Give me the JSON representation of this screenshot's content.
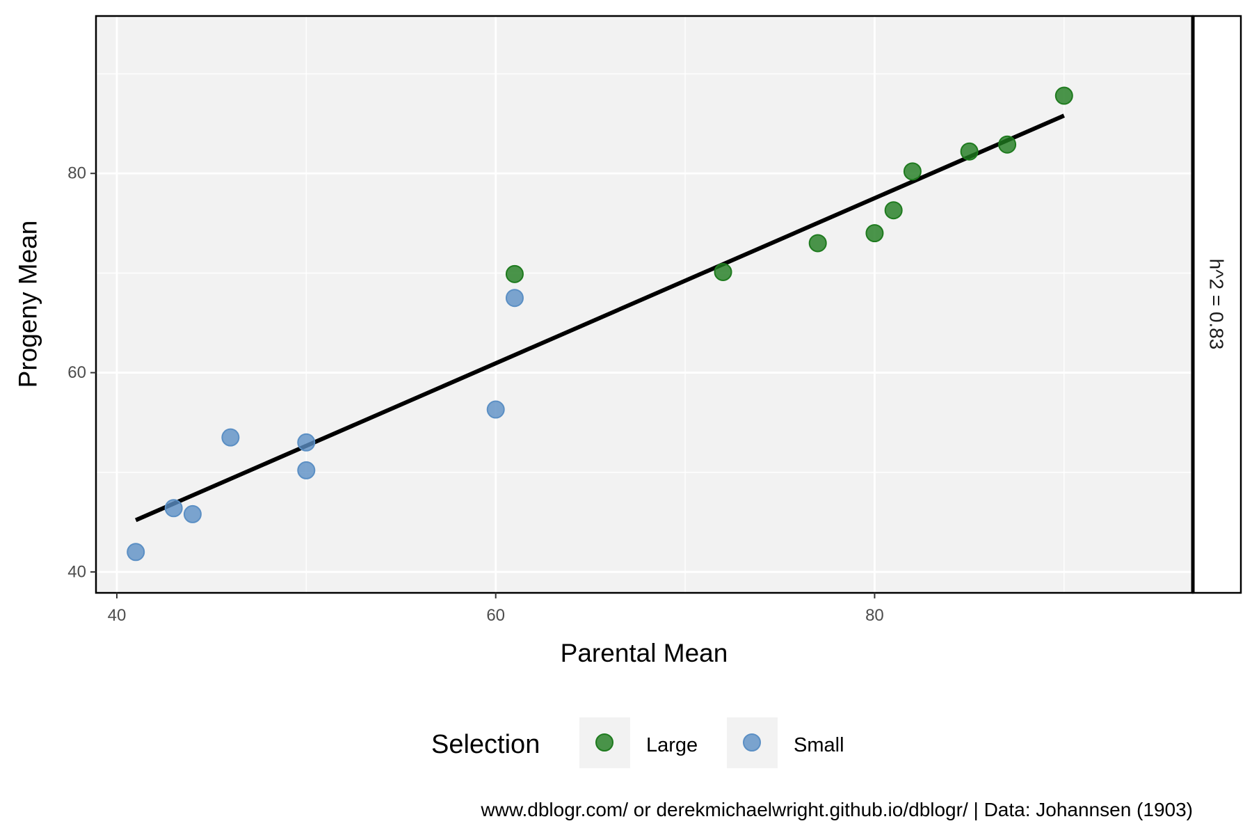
{
  "chart_data": {
    "type": "scatter",
    "xlabel": "Parental Mean",
    "ylabel": "Progeny Mean",
    "xlim": [
      38.9,
      96.8
    ],
    "ylim": [
      37.9,
      95.8
    ],
    "x_ticks": [
      40,
      60,
      80
    ],
    "y_ticks": [
      40,
      60,
      80
    ],
    "x_tick_labels": [
      "40",
      "60",
      "80"
    ],
    "y_tick_labels": [
      "40",
      "60",
      "80"
    ],
    "grid": true,
    "panel_background": "#f2f2f2",
    "facet_label": "h^2 = 0.83",
    "legend": {
      "title": "Selection",
      "position": "bottom"
    },
    "series": [
      {
        "name": "Large",
        "color": "#1e7a1e",
        "points": [
          {
            "x": 61,
            "y": 69.9
          },
          {
            "x": 72,
            "y": 70.1
          },
          {
            "x": 77,
            "y": 73.0
          },
          {
            "x": 80,
            "y": 74.0
          },
          {
            "x": 81,
            "y": 76.3
          },
          {
            "x": 82,
            "y": 80.2
          },
          {
            "x": 85,
            "y": 82.2
          },
          {
            "x": 87,
            "y": 82.9
          },
          {
            "x": 90,
            "y": 87.8
          }
        ]
      },
      {
        "name": "Small",
        "color": "#5b8fc4",
        "points": [
          {
            "x": 41,
            "y": 42.0
          },
          {
            "x": 43,
            "y": 46.4
          },
          {
            "x": 44,
            "y": 45.8
          },
          {
            "x": 46,
            "y": 53.5
          },
          {
            "x": 50,
            "y": 53.0
          },
          {
            "x": 50,
            "y": 50.2
          },
          {
            "x": 60,
            "y": 56.3
          },
          {
            "x": 61,
            "y": 67.5
          }
        ]
      }
    ],
    "trend_line": {
      "x": [
        41,
        90
      ],
      "y": [
        45.2,
        85.8
      ],
      "color": "#000000"
    },
    "caption": "www.dblogr.com/ or derekmichaelwright.github.io/dblogr/ | Data: Johannsen (1903)"
  }
}
